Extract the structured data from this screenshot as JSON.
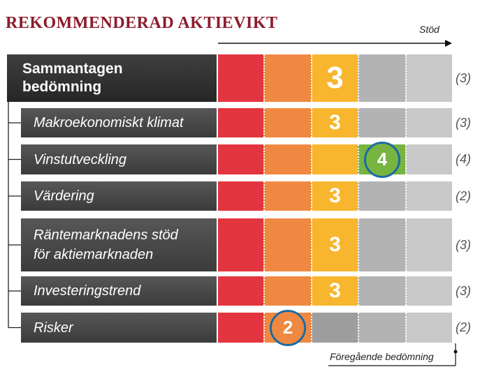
{
  "title": "REKOMMENDERAD AKTIEVIKT",
  "axis_label": "Stöd",
  "previous_caption": "Föregående bedömning",
  "colors": {
    "title": "#8c1c2c",
    "scale": [
      "#e2353f",
      "#ef8942",
      "#f8b62f",
      "#b3b3b3",
      "#c9c9c9"
    ],
    "scale_dim": [
      "#e2353f",
      "#ef8942",
      "#9e9e9e",
      "#b3b3b3",
      "#c9c9c9"
    ],
    "green": "#78b441",
    "marker_ring": "#1a6aa5"
  },
  "chart_data": {
    "type": "table",
    "scale": [
      1,
      2,
      3,
      4,
      5
    ],
    "rows": [
      {
        "label": "Sammantagen\nbedömning",
        "score": 3,
        "previous_text": "(3)",
        "main": true
      },
      {
        "label": "Makroekonomiskt klimat",
        "score": 3,
        "previous_text": "(3)"
      },
      {
        "label": "Vinstutveckling",
        "score": 4,
        "previous_text": "(4)",
        "highlight": "circle",
        "color": "green"
      },
      {
        "label": "Värdering",
        "score": 3,
        "previous_text": "(2)"
      },
      {
        "label": "Räntemarknadens stöd\nför aktiemarknaden",
        "score": 3,
        "previous_text": "(3)"
      },
      {
        "label": "Investeringstrend",
        "score": 3,
        "previous_text": "(3)"
      },
      {
        "label": "Risker",
        "score": 2,
        "previous_text": "(2)",
        "highlight": "circle"
      }
    ]
  }
}
